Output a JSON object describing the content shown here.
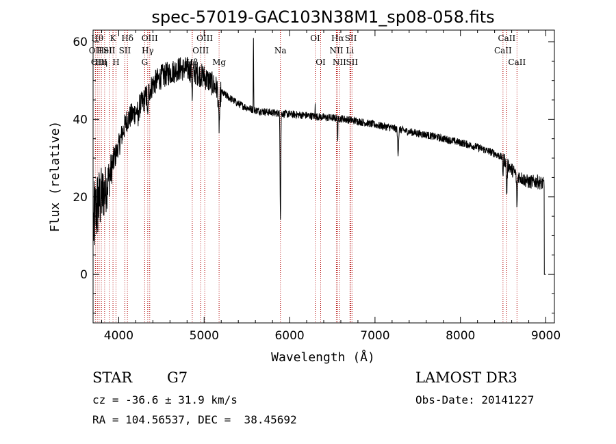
{
  "chart_data": {
    "type": "line",
    "title": "spec-57019-GAC103N38M1_sp08-058.fits",
    "xlabel": "Wavelength (Å)",
    "ylabel": "Flux (relative)",
    "xlim": [
      3700,
      9100
    ],
    "ylim": [
      -12.5,
      63
    ],
    "xticks": [
      4000,
      5000,
      6000,
      7000,
      8000,
      9000
    ],
    "xtick_labels": [
      "4000",
      "5000",
      "6000",
      "7000",
      "8000",
      "9000"
    ],
    "yticks": [
      0,
      20,
      40,
      60
    ],
    "ytick_labels": [
      "0",
      "20",
      "40",
      "60"
    ],
    "line_color": "#000000",
    "marker_color": "#b00000",
    "continuum": [
      [
        3700,
        12
      ],
      [
        3750,
        18
      ],
      [
        3800,
        20
      ],
      [
        3850,
        22
      ],
      [
        3900,
        26
      ],
      [
        3950,
        30
      ],
      [
        4000,
        33
      ],
      [
        4050,
        37
      ],
      [
        4100,
        40
      ],
      [
        4200,
        42
      ],
      [
        4300,
        45
      ],
      [
        4400,
        49
      ],
      [
        4500,
        51
      ],
      [
        4600,
        52
      ],
      [
        4700,
        53
      ],
      [
        4800,
        53
      ],
      [
        4900,
        52
      ],
      [
        5000,
        51
      ],
      [
        5100,
        49
      ],
      [
        5200,
        47
      ],
      [
        5300,
        45.5
      ],
      [
        5400,
        44
      ],
      [
        5500,
        43
      ],
      [
        5600,
        42.3
      ],
      [
        5800,
        41.7
      ],
      [
        6000,
        41.3
      ],
      [
        6200,
        41
      ],
      [
        6400,
        40.5
      ],
      [
        6600,
        40.2
      ],
      [
        6800,
        39.5
      ],
      [
        7000,
        38.6
      ],
      [
        7200,
        37.8
      ],
      [
        7400,
        36.8
      ],
      [
        7600,
        36
      ],
      [
        7800,
        35
      ],
      [
        8000,
        34
      ],
      [
        8200,
        32.8
      ],
      [
        8400,
        31.2
      ],
      [
        8500,
        30
      ],
      [
        8600,
        27
      ],
      [
        8700,
        25
      ],
      [
        8800,
        23.8
      ],
      [
        8900,
        24
      ],
      [
        9000,
        23
      ]
    ],
    "absorption_features": [
      {
        "x": 5893,
        "depth": 27,
        "width": 4
      },
      {
        "x": 6563,
        "depth": 6,
        "width": 3
      },
      {
        "x": 7270,
        "depth": 6,
        "width": 6
      },
      {
        "x": 8498,
        "depth": 4,
        "width": 4
      },
      {
        "x": 8542,
        "depth": 8,
        "width": 5
      },
      {
        "x": 8662,
        "depth": 8,
        "width": 5
      },
      {
        "x": 4861,
        "depth": 6,
        "width": 4
      },
      {
        "x": 4340,
        "depth": 7,
        "width": 4
      },
      {
        "x": 5175,
        "depth": 9,
        "width": 8
      },
      {
        "x": 4227,
        "depth": 4,
        "width": 4
      }
    ],
    "emission_features": [
      {
        "x": 5577,
        "height": 20,
        "width": 2
      },
      {
        "x": 6300,
        "height": 3,
        "width": 2
      }
    ],
    "line_markers": [
      {
        "x": 3727,
        "label": "OII",
        "row": 1
      },
      {
        "x": 3750,
        "label": "Hθ",
        "row": 0
      },
      {
        "x": 3771,
        "label": "OIII",
        "row": 2
      },
      {
        "x": 3797,
        "label": "Hη",
        "row": 2
      },
      {
        "x": 3835,
        "label": "HeI",
        "row": 1
      },
      {
        "x": 3889,
        "label": "SII",
        "row": 1
      },
      {
        "x": 3933,
        "label": "K",
        "row": 0
      },
      {
        "x": 3968,
        "label": "H",
        "row": 2
      },
      {
        "x": 4072,
        "label": "SII",
        "row": 1
      },
      {
        "x": 4102,
        "label": "Hδ",
        "row": 0
      },
      {
        "x": 4304,
        "label": "G",
        "row": 2
      },
      {
        "x": 4340,
        "label": "Hγ",
        "row": 1
      },
      {
        "x": 4363,
        "label": "OIII",
        "row": 0
      },
      {
        "x": 4861,
        "label": "Hβ",
        "row": 2
      },
      {
        "x": 4959,
        "label": "OIII",
        "row": 1
      },
      {
        "x": 5007,
        "label": "OIII",
        "row": 0
      },
      {
        "x": 5175,
        "label": "Mg",
        "row": 2
      },
      {
        "x": 5893,
        "label": "Na",
        "row": 1
      },
      {
        "x": 6300,
        "label": "OI",
        "row": 0
      },
      {
        "x": 6364,
        "label": "OI",
        "row": 2
      },
      {
        "x": 6548,
        "label": "NII",
        "row": 1
      },
      {
        "x": 6563,
        "label": "Hα",
        "row": 0
      },
      {
        "x": 6583,
        "label": "NII",
        "row": 2
      },
      {
        "x": 6717,
        "label": "SII",
        "row": 0
      },
      {
        "x": 6707,
        "label": "Li",
        "row": 1
      },
      {
        "x": 6731,
        "label": "SII",
        "row": 2
      },
      {
        "x": 8498,
        "label": "CaII",
        "row": 1
      },
      {
        "x": 8542,
        "label": "CaII",
        "row": 0
      },
      {
        "x": 8662,
        "label": "CaII",
        "row": 2
      }
    ]
  },
  "info": {
    "object_class": "STAR",
    "subclass": "G7",
    "survey": "LAMOST DR3",
    "redshift": "cz = -36.6 ± 31.9 km/s",
    "obs_date": "Obs-Date: 20141227",
    "coords": "RA = 104.56537, DEC =  38.45692"
  }
}
